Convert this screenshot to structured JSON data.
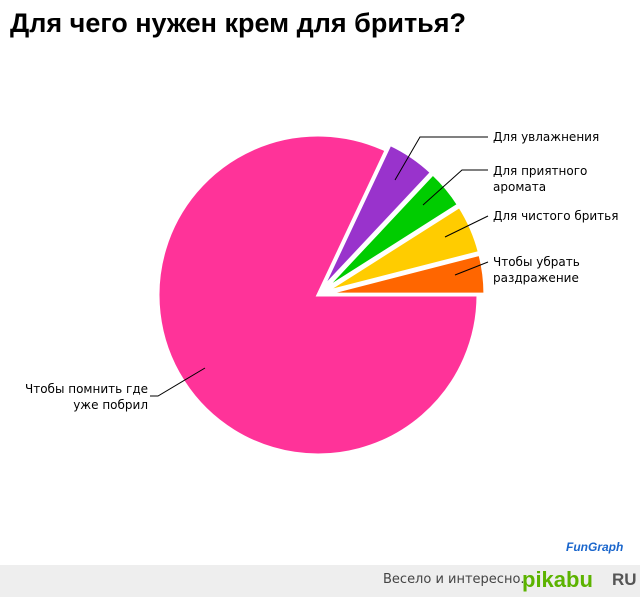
{
  "chart_data": {
    "type": "pie",
    "title": "Для чего нужен крем для бритья?",
    "categories": [
      "Чтобы убрать раздражение",
      "Для чистого бритья",
      "Для приятного аромата",
      "Для увлажнения",
      "Чтобы помнить где уже побрил"
    ],
    "values": [
      4,
      5,
      4,
      5,
      82
    ],
    "colors": [
      "#ff6600",
      "#ffcc00",
      "#00cc00",
      "#9933cc",
      "#ff3399"
    ]
  },
  "footer": {
    "slogan": "Весело и интересно.",
    "brand": "pikabu",
    "domain": "RU",
    "credit": "FunGraph"
  }
}
